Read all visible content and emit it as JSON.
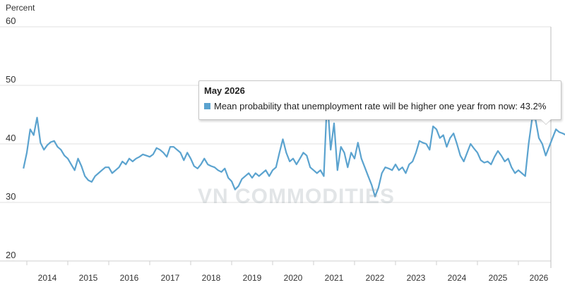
{
  "chart_data": {
    "type": "line",
    "ylabel": "Percent",
    "ylim": [
      20,
      60
    ],
    "yticks": [
      "20",
      "30",
      "40",
      "50",
      "60"
    ],
    "xticks": [
      "2014",
      "2015",
      "2016",
      "2017",
      "2018",
      "2019",
      "2020",
      "2021",
      "2022",
      "2023",
      "2024",
      "2025",
      "2026"
    ],
    "grid": true,
    "series": [
      {
        "name": "Mean probability that unemployment rate will be higher one year from now",
        "color": "#5ba3cf",
        "x_start": "2013-06",
        "x_end": "2026-05",
        "values": [
          35.8,
          38.5,
          42.5,
          41.5,
          44.5,
          40.2,
          39.0,
          39.8,
          40.3,
          40.5,
          39.5,
          39.0,
          38.0,
          37.5,
          36.5,
          35.5,
          37.5,
          36.2,
          34.5,
          33.8,
          33.5,
          34.5,
          35.0,
          35.5,
          36.0,
          36.0,
          35.0,
          35.5,
          36.0,
          37.0,
          36.5,
          37.5,
          37.0,
          37.5,
          37.8,
          38.2,
          38.0,
          37.8,
          38.2,
          39.3,
          39.0,
          38.5,
          37.8,
          39.5,
          39.5,
          39.0,
          38.5,
          37.2,
          38.5,
          37.5,
          36.2,
          35.8,
          36.5,
          37.5,
          36.5,
          36.2,
          36.0,
          35.5,
          35.2,
          35.8,
          34.2,
          33.6,
          32.2,
          32.8,
          34.0,
          34.5,
          35.0,
          34.2,
          35.0,
          34.5,
          35.0,
          35.5,
          34.5,
          35.5,
          36.0,
          38.5,
          40.8,
          38.5,
          37.0,
          37.5,
          36.5,
          37.5,
          38.5,
          38.0,
          36.0,
          35.5,
          35.0,
          35.5,
          34.5,
          48.0,
          39.0,
          43.5,
          35.5,
          39.5,
          38.5,
          36.0,
          38.5,
          37.5,
          40.2,
          37.5,
          36.0,
          34.5,
          33.0,
          31.0,
          32.5,
          35.0,
          36.0,
          35.8,
          35.5,
          36.5,
          35.5,
          36.0,
          35.0,
          36.5,
          37.0,
          38.5,
          40.5,
          40.2,
          40.0,
          39.0,
          43.0,
          42.5,
          41.0,
          41.5,
          39.5,
          41.0,
          41.8,
          40.0,
          38.0,
          37.0,
          38.5,
          40.0,
          39.2,
          38.5,
          37.2,
          36.8,
          37.0,
          36.5,
          37.8,
          38.8,
          38.0,
          37.0,
          37.5,
          36.0,
          35.0,
          35.5,
          35.0,
          34.5,
          40.0,
          44.2,
          44.2,
          41.0,
          40.0,
          38.0,
          39.5,
          41.0,
          42.5,
          42.0,
          41.8,
          41.5,
          40.0,
          43.5,
          44.0,
          43.2
        ]
      }
    ]
  },
  "tooltip": {
    "title": "May 2026",
    "label": "Mean probability that unemployment rate will be higher one year from now: 43.2%"
  },
  "watermark": "VN COMMODITIES"
}
